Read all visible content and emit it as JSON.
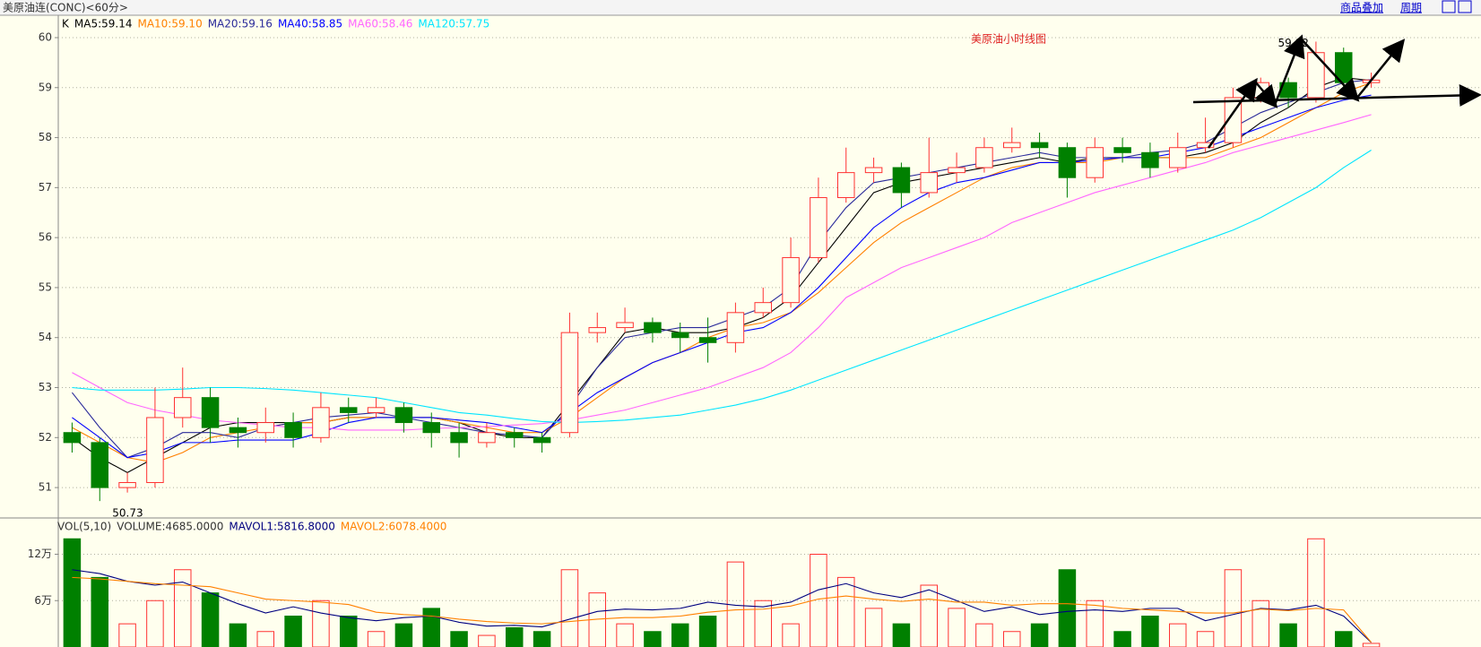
{
  "header": {
    "title": "美原油连(CONC)<60分>",
    "links": [
      "商品叠加",
      "周期"
    ]
  },
  "chart_data": [
    {
      "type": "candlestick",
      "title": "美原油小时线图",
      "legend_label": "K",
      "up_color": "#ff3232",
      "down_color": "#008000",
      "grid": true,
      "ylim": [
        50.41,
        60.43
      ],
      "yticks": [
        51,
        52,
        53,
        54,
        55,
        56,
        57,
        58,
        59,
        60
      ],
      "open": [
        52.1,
        51.9,
        51.0,
        51.1,
        52.4,
        52.8,
        52.2,
        52.1,
        52.3,
        52.0,
        52.6,
        52.5,
        52.6,
        52.3,
        52.1,
        51.9,
        52.1,
        52.0,
        52.1,
        54.1,
        54.2,
        54.3,
        54.1,
        54.0,
        53.9,
        54.5,
        54.7,
        55.6,
        56.8,
        57.3,
        57.4,
        56.9,
        57.3,
        57.4,
        57.8,
        57.9,
        57.8,
        57.2,
        57.8,
        57.7,
        57.4,
        57.8,
        57.9,
        58.8,
        59.1,
        58.8,
        59.7,
        59.1
      ],
      "high": [
        52.3,
        52.0,
        51.3,
        53.0,
        53.4,
        53.0,
        52.4,
        52.6,
        52.5,
        52.9,
        52.8,
        52.8,
        52.7,
        52.5,
        52.3,
        52.3,
        52.2,
        52.1,
        54.5,
        54.5,
        54.6,
        54.4,
        54.3,
        54.4,
        54.7,
        55.0,
        56.0,
        57.2,
        57.8,
        57.6,
        57.5,
        58.0,
        57.7,
        58.0,
        58.2,
        58.1,
        57.9,
        58.0,
        58.0,
        57.9,
        58.1,
        58.4,
        59.0,
        59.2,
        59.2,
        59.92,
        59.8,
        59.3
      ],
      "low": [
        51.7,
        50.73,
        50.9,
        51.0,
        52.2,
        51.9,
        51.8,
        51.9,
        51.8,
        51.9,
        52.3,
        52.4,
        52.1,
        51.8,
        51.6,
        51.8,
        51.8,
        51.7,
        52.0,
        53.9,
        54.1,
        53.9,
        53.7,
        53.5,
        53.7,
        54.4,
        54.6,
        55.5,
        56.7,
        57.1,
        56.6,
        56.8,
        57.1,
        57.3,
        57.7,
        57.6,
        56.8,
        57.1,
        57.5,
        57.2,
        57.3,
        57.7,
        57.8,
        58.7,
        58.6,
        58.7,
        58.9,
        59.0
      ],
      "close": [
        51.9,
        51.0,
        51.1,
        52.4,
        52.8,
        52.2,
        52.1,
        52.3,
        52.0,
        52.6,
        52.5,
        52.6,
        52.3,
        52.1,
        51.9,
        52.1,
        52.0,
        51.9,
        54.1,
        54.2,
        54.3,
        54.1,
        54.0,
        53.9,
        54.5,
        54.7,
        55.6,
        56.8,
        57.3,
        57.4,
        56.9,
        57.3,
        57.4,
        57.8,
        57.9,
        57.8,
        57.2,
        57.8,
        57.7,
        57.4,
        57.8,
        57.9,
        58.8,
        59.1,
        58.8,
        59.7,
        59.1,
        59.15
      ],
      "series": [
        {
          "name": "MA5:59.14",
          "color": "#000000",
          "values": [
            52.0,
            51.6,
            51.3,
            51.6,
            51.9,
            52.2,
            52.3,
            52.3,
            52.3,
            52.3,
            52.4,
            52.4,
            52.4,
            52.4,
            52.3,
            52.1,
            52.0,
            52.0,
            52.7,
            53.4,
            54.1,
            54.2,
            54.1,
            54.1,
            54.2,
            54.4,
            54.8,
            55.5,
            56.2,
            56.9,
            57.1,
            57.2,
            57.3,
            57.4,
            57.5,
            57.6,
            57.5,
            57.6,
            57.6,
            57.6,
            57.6,
            57.7,
            57.9,
            58.3,
            58.6,
            59.0,
            59.2,
            59.14
          ]
        },
        {
          "name": "MA10:59.10",
          "color": "#ff8000",
          "values": [
            52.2,
            51.9,
            51.6,
            51.5,
            51.7,
            52.0,
            52.1,
            52.2,
            52.3,
            52.3,
            52.4,
            52.4,
            52.4,
            52.4,
            52.3,
            52.2,
            52.1,
            52.1,
            52.4,
            52.8,
            53.2,
            53.5,
            53.7,
            54.0,
            54.2,
            54.3,
            54.5,
            54.9,
            55.4,
            55.9,
            56.3,
            56.6,
            56.9,
            57.2,
            57.4,
            57.5,
            57.5,
            57.5,
            57.6,
            57.6,
            57.6,
            57.6,
            57.8,
            58.0,
            58.3,
            58.6,
            58.9,
            59.1
          ]
        },
        {
          "name": "MA20:59.16",
          "color": "#2a2a9a",
          "values": [
            52.9,
            52.2,
            51.6,
            51.8,
            52.1,
            52.1,
            52.0,
            52.2,
            52.3,
            52.4,
            52.45,
            52.5,
            52.4,
            52.3,
            52.2,
            52.1,
            52.05,
            52.0,
            52.6,
            53.4,
            54.0,
            54.1,
            54.2,
            54.2,
            54.4,
            54.6,
            55.0,
            55.9,
            56.6,
            57.1,
            57.2,
            57.3,
            57.4,
            57.5,
            57.6,
            57.7,
            57.6,
            57.6,
            57.6,
            57.7,
            57.75,
            57.9,
            58.2,
            58.5,
            58.7,
            58.9,
            59.1,
            59.16
          ]
        },
        {
          "name": "MA40:58.85",
          "color": "#0000ff",
          "values": [
            52.4,
            52.0,
            51.6,
            51.7,
            51.9,
            51.9,
            51.95,
            51.95,
            51.95,
            52.1,
            52.3,
            52.4,
            52.4,
            52.4,
            52.35,
            52.3,
            52.2,
            52.1,
            52.5,
            52.9,
            53.2,
            53.5,
            53.7,
            53.9,
            54.1,
            54.2,
            54.5,
            55.0,
            55.6,
            56.2,
            56.6,
            56.9,
            57.1,
            57.2,
            57.35,
            57.5,
            57.5,
            57.55,
            57.6,
            57.6,
            57.7,
            57.8,
            58.0,
            58.2,
            58.4,
            58.6,
            58.75,
            58.85
          ]
        },
        {
          "name": "MA60:58.46",
          "color": "#ff66ff",
          "values": [
            53.3,
            53.0,
            52.7,
            52.55,
            52.45,
            52.35,
            52.3,
            52.25,
            52.2,
            52.2,
            52.15,
            52.15,
            52.15,
            52.18,
            52.2,
            52.22,
            52.25,
            52.28,
            52.35,
            52.45,
            52.55,
            52.7,
            52.85,
            53.0,
            53.2,
            53.4,
            53.7,
            54.2,
            54.8,
            55.1,
            55.4,
            55.6,
            55.8,
            56.0,
            56.3,
            56.5,
            56.7,
            56.9,
            57.05,
            57.2,
            57.35,
            57.5,
            57.7,
            57.85,
            58.0,
            58.15,
            58.3,
            58.46
          ]
        },
        {
          "name": "MA120:57.75",
          "color": "#00e5ff",
          "values": [
            53.0,
            52.95,
            52.95,
            52.95,
            52.97,
            53.0,
            53.0,
            52.98,
            52.95,
            52.9,
            52.85,
            52.8,
            52.7,
            52.6,
            52.5,
            52.45,
            52.38,
            52.32,
            52.3,
            52.32,
            52.35,
            52.4,
            52.45,
            52.55,
            52.65,
            52.78,
            52.95,
            53.15,
            53.35,
            53.55,
            53.75,
            53.95,
            54.15,
            54.35,
            54.55,
            54.75,
            54.95,
            55.15,
            55.35,
            55.55,
            55.75,
            55.95,
            56.15,
            56.4,
            56.7,
            57.0,
            57.4,
            57.75
          ]
        }
      ]
    },
    {
      "type": "bar",
      "title": "VOL(5,10)",
      "volume_label": "VOLUME:4685.0000",
      "ylim": [
        0,
        160000
      ],
      "yticks": [
        {
          "value": 60000,
          "label": "6万"
        },
        {
          "value": 120000,
          "label": "12万"
        }
      ],
      "grid": true,
      "values": [
        140000,
        90000,
        30000,
        60000,
        100000,
        70000,
        30000,
        20000,
        40000,
        60000,
        40000,
        20000,
        30000,
        50000,
        20000,
        15000,
        25000,
        20000,
        100000,
        70000,
        30000,
        20000,
        30000,
        40000,
        110000,
        60000,
        30000,
        120000,
        90000,
        50000,
        30000,
        80000,
        50000,
        30000,
        20000,
        30000,
        100000,
        60000,
        20000,
        40000,
        30000,
        20000,
        100000,
        60000,
        30000,
        140000,
        20000,
        4685
      ],
      "series": [
        {
          "name": "MAVOL1:5816.8000",
          "color": "#000080",
          "values": [
            100000,
            95000,
            85000,
            80000,
            84000,
            70000,
            56000,
            44000,
            52000,
            44000,
            38000,
            34000,
            38000,
            40000,
            32000,
            27000,
            28000,
            26000,
            36000,
            46000,
            49000,
            48000,
            50000,
            58000,
            54000,
            52000,
            58000,
            74000,
            82000,
            70000,
            64000,
            74000,
            60000,
            46000,
            52000,
            42000,
            46000,
            48000,
            46000,
            50000,
            50000,
            34000,
            42000,
            50000,
            48000,
            54000,
            40000,
            5816.8
          ]
        },
        {
          "name": "MAVOL2:6078.4000",
          "color": "#ff8000",
          "values": [
            90000,
            88000,
            85000,
            82000,
            80000,
            78000,
            70000,
            62000,
            60000,
            58000,
            55000,
            45000,
            42000,
            40000,
            36000,
            33000,
            31000,
            30000,
            33000,
            36000,
            38000,
            38000,
            40000,
            45000,
            48000,
            49000,
            53000,
            62000,
            66000,
            62000,
            59000,
            62000,
            58000,
            58000,
            54000,
            56000,
            56000,
            54000,
            50000,
            48000,
            46000,
            44000,
            44000,
            49000,
            47000,
            50000,
            48000,
            6078.4
          ]
        }
      ]
    }
  ]
}
